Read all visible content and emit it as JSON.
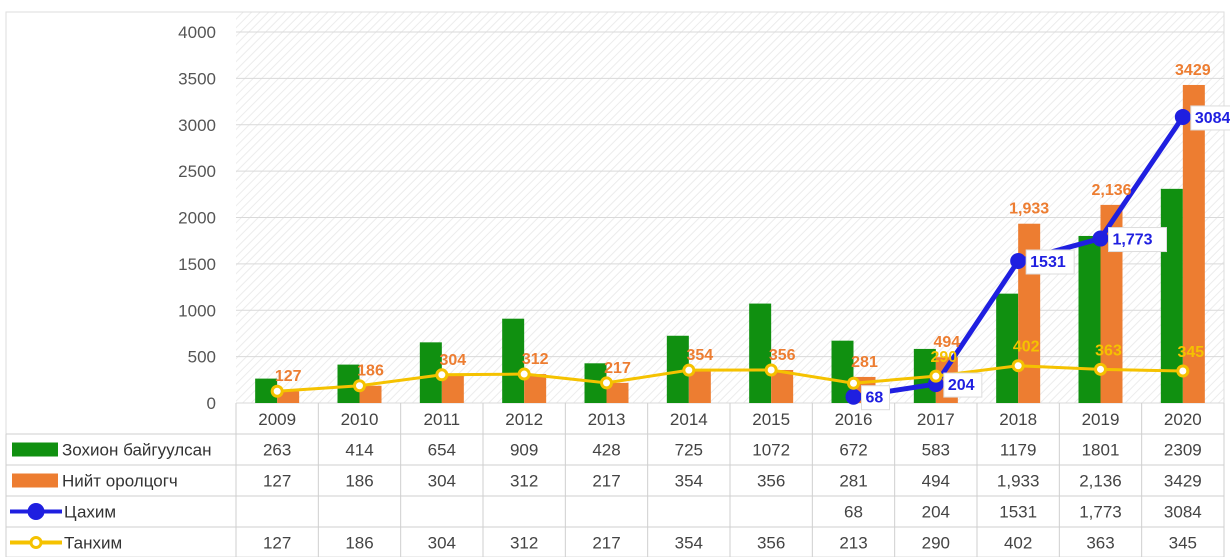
{
  "chart_data": {
    "type": "bar",
    "categories": [
      "2009",
      "2010",
      "2011",
      "2012",
      "2013",
      "2014",
      "2015",
      "2016",
      "2017",
      "2018",
      "2019",
      "2020"
    ],
    "ylim": [
      0,
      4000
    ],
    "yticks": [
      "0",
      "500",
      "1000",
      "1500",
      "2000",
      "2500",
      "3000",
      "3500",
      "4000"
    ],
    "grid": true,
    "legend_placement": "data-table-left",
    "series": [
      {
        "name": "Зохион байгуулсан",
        "kind": "bar",
        "color": "#109010",
        "values": [
          263,
          414,
          654,
          909,
          428,
          725,
          1072,
          672,
          583,
          1179,
          1801,
          2309
        ],
        "table_values": [
          "263",
          "414",
          "654",
          "909",
          "428",
          "725",
          "1072",
          "672",
          "583",
          "1179",
          "1801",
          "2309"
        ],
        "data_labels": []
      },
      {
        "name": "Нийт оролцогч",
        "kind": "bar",
        "color": "#ED7D31",
        "values": [
          127,
          186,
          304,
          312,
          217,
          354,
          356,
          281,
          494,
          1933,
          2136,
          3429
        ],
        "table_values": [
          "127",
          "186",
          "304",
          "312",
          "217",
          "354",
          "356",
          "281",
          "494",
          "1,933",
          "2,136",
          "3429"
        ],
        "data_labels": [
          "127",
          "186",
          "304",
          "312",
          "217",
          "354",
          "356",
          "281",
          "494",
          "1,933",
          "2,136",
          "3429"
        ]
      },
      {
        "name": "Цахим",
        "kind": "line",
        "color": "#1F1FE0",
        "values": [
          null,
          null,
          null,
          null,
          null,
          null,
          null,
          68,
          204,
          1531,
          1773,
          3084
        ],
        "table_values": [
          "",
          "",
          "",
          "",
          "",
          "",
          "",
          "68",
          "204",
          "1531",
          "1,773",
          "3084"
        ],
        "data_labels": [
          "",
          "",
          "",
          "",
          "",
          "",
          "",
          "68",
          "204",
          "1531",
          "1,773",
          "3084"
        ]
      },
      {
        "name": "Танхим",
        "kind": "line",
        "color": "#F5C200",
        "values": [
          127,
          186,
          304,
          312,
          217,
          354,
          356,
          213,
          290,
          402,
          363,
          345
        ],
        "table_values": [
          "127",
          "186",
          "304",
          "312",
          "217",
          "354",
          "356",
          "213",
          "290",
          "402",
          "363",
          "345"
        ],
        "data_labels": [
          "",
          "",
          "",
          "",
          "",
          "",
          "",
          "",
          "290",
          "402",
          "363",
          "345"
        ]
      }
    ]
  }
}
